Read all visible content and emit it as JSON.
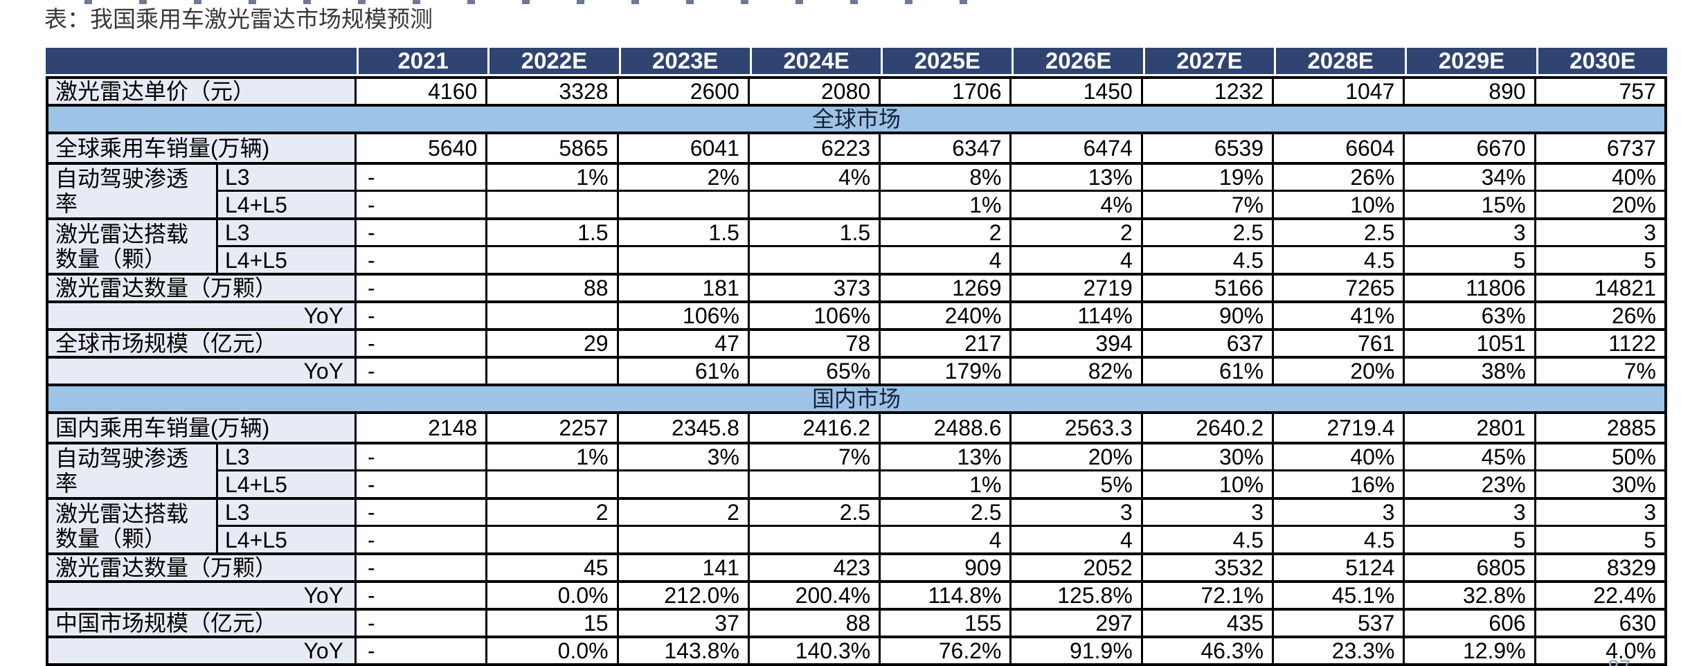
{
  "page": {
    "title": "表：我国乘用车激光雷达市场规模预测",
    "page_number_fragment": "87",
    "colors": {
      "header_bg": "#2f4470",
      "header_text": "#ffffff",
      "section_band_bg": "#9dc3e6",
      "label_bg": "#e7ebf6",
      "grid": "#000000"
    }
  },
  "chart_data": {
    "type": "table",
    "title": "表：我国乘用车激光雷达市场规模预测",
    "columns": [
      "",
      "2021",
      "2022E",
      "2023E",
      "2024E",
      "2025E",
      "2026E",
      "2027E",
      "2028E",
      "2029E",
      "2030E"
    ],
    "rows": [
      {
        "kind": "data",
        "label": "激光雷达单价（元）",
        "values": [
          "4160",
          "3328",
          "2600",
          "2080",
          "1706",
          "1450",
          "1232",
          "1047",
          "890",
          "757"
        ]
      },
      {
        "kind": "section",
        "label": "全球市场"
      },
      {
        "kind": "data",
        "label": "全球乘用车销量(万辆)",
        "values": [
          "5640",
          "5865",
          "6041",
          "6223",
          "6347",
          "6474",
          "6539",
          "6604",
          "6670",
          "6737"
        ]
      },
      {
        "kind": "data",
        "label": "自动驾驶渗透\n率",
        "sublabel": "L3",
        "span": 2,
        "values": [
          "-",
          "1%",
          "2%",
          "4%",
          "8%",
          "13%",
          "19%",
          "26%",
          "34%",
          "40%"
        ]
      },
      {
        "kind": "data",
        "sublabel": "L4+L5",
        "values": [
          "-",
          "",
          "",
          "",
          "1%",
          "4%",
          "7%",
          "10%",
          "15%",
          "20%"
        ]
      },
      {
        "kind": "data",
        "label": "激光雷达搭载\n数量（颗）",
        "sublabel": "L3",
        "span": 2,
        "values": [
          "-",
          "1.5",
          "1.5",
          "1.5",
          "2",
          "2",
          "2.5",
          "2.5",
          "3",
          "3"
        ]
      },
      {
        "kind": "data",
        "sublabel": "L4+L5",
        "values": [
          "-",
          "",
          "",
          "",
          "4",
          "4",
          "4.5",
          "4.5",
          "5",
          "5"
        ]
      },
      {
        "kind": "data",
        "label": "激光雷达数量（万颗）",
        "values": [
          "-",
          "88",
          "181",
          "373",
          "1269",
          "2719",
          "5166",
          "7265",
          "11806",
          "14821"
        ]
      },
      {
        "kind": "data",
        "label": "YoY",
        "values": [
          "-",
          "",
          "106%",
          "106%",
          "240%",
          "114%",
          "90%",
          "41%",
          "63%",
          "26%"
        ]
      },
      {
        "kind": "data",
        "label": "全球市场规模（亿元）",
        "values": [
          "-",
          "29",
          "47",
          "78",
          "217",
          "394",
          "637",
          "761",
          "1051",
          "1122"
        ]
      },
      {
        "kind": "data",
        "label": "YoY",
        "values": [
          "-",
          "",
          "61%",
          "65%",
          "179%",
          "82%",
          "61%",
          "20%",
          "38%",
          "7%"
        ]
      },
      {
        "kind": "section",
        "label": "国内市场"
      },
      {
        "kind": "data",
        "label": "国内乘用车销量(万辆)",
        "values": [
          "2148",
          "2257",
          "2345.8",
          "2416.2",
          "2488.6",
          "2563.3",
          "2640.2",
          "2719.4",
          "2801",
          "2885"
        ]
      },
      {
        "kind": "data",
        "label": "自动驾驶渗透\n率",
        "sublabel": "L3",
        "span": 2,
        "values": [
          "-",
          "1%",
          "3%",
          "7%",
          "13%",
          "20%",
          "30%",
          "40%",
          "45%",
          "50%"
        ]
      },
      {
        "kind": "data",
        "sublabel": "L4+L5",
        "values": [
          "-",
          "",
          "",
          "",
          "1%",
          "5%",
          "10%",
          "16%",
          "23%",
          "30%"
        ]
      },
      {
        "kind": "data",
        "label": "激光雷达搭载\n数量（颗）",
        "sublabel": "L3",
        "span": 2,
        "values": [
          "-",
          "2",
          "2",
          "2.5",
          "2.5",
          "3",
          "3",
          "3",
          "3",
          "3"
        ]
      },
      {
        "kind": "data",
        "sublabel": "L4+L5",
        "values": [
          "-",
          "",
          "",
          "",
          "4",
          "4",
          "4.5",
          "4.5",
          "5",
          "5"
        ]
      },
      {
        "kind": "data",
        "label": "激光雷达数量（万颗）",
        "values": [
          "-",
          "45",
          "141",
          "423",
          "909",
          "2052",
          "3532",
          "5124",
          "6805",
          "8329"
        ]
      },
      {
        "kind": "data",
        "label": "YoY",
        "values": [
          "-",
          "0.0%",
          "212.0%",
          "200.4%",
          "114.8%",
          "125.8%",
          "72.1%",
          "45.1%",
          "32.8%",
          "22.4%"
        ]
      },
      {
        "kind": "data",
        "label": "中国市场规模（亿元）",
        "values": [
          "-",
          "15",
          "37",
          "88",
          "155",
          "297",
          "435",
          "537",
          "606",
          "630"
        ]
      },
      {
        "kind": "data",
        "label": "YoY",
        "values": [
          "-",
          "0.0%",
          "143.8%",
          "140.3%",
          "76.2%",
          "91.9%",
          "46.3%",
          "23.3%",
          "12.9%",
          "4.0%"
        ]
      }
    ]
  }
}
